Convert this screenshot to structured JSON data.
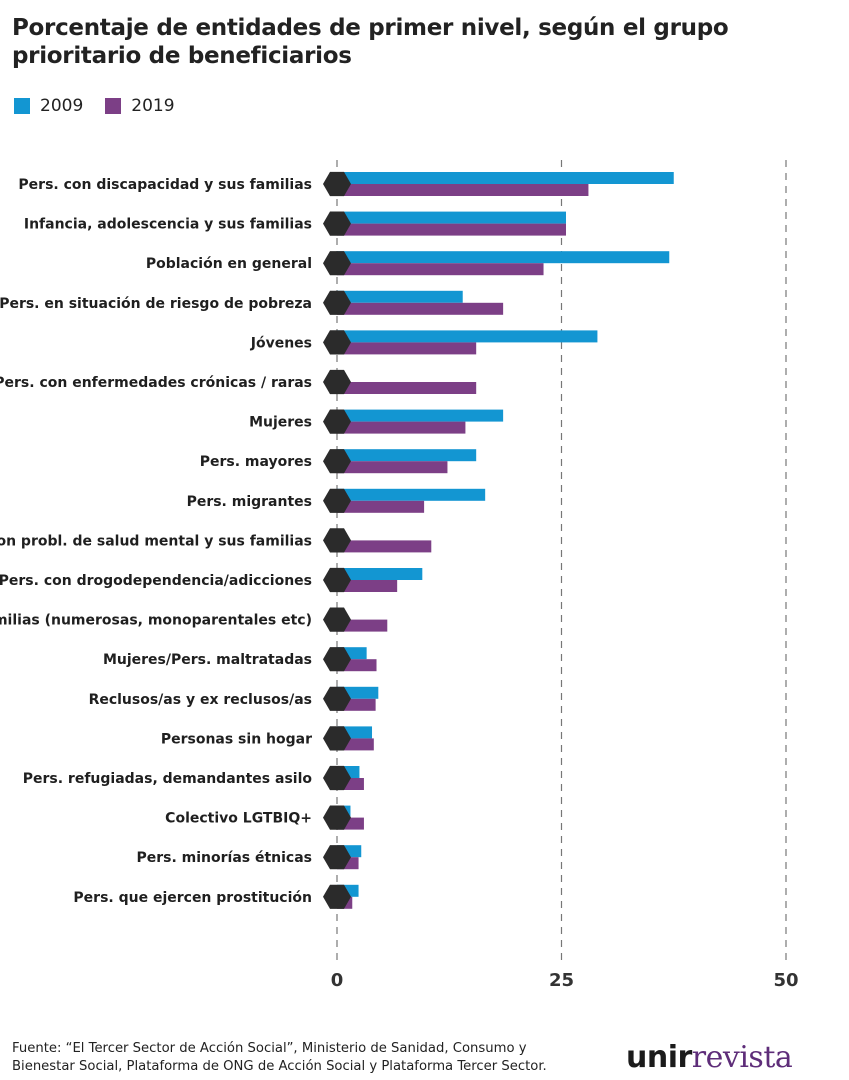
{
  "title": "Porcentaje de entidades de primer nivel, según el grupo prioritario de beneficiarios",
  "legend": [
    {
      "label": "2009",
      "color": "#1396d2"
    },
    {
      "label": "2019",
      "color": "#7c3f86"
    }
  ],
  "chart_data": {
    "type": "bar",
    "orientation": "horizontal",
    "categories": [
      "Pers. con discapacidad y sus familias",
      "Infancia, adolescencia y sus familias",
      "Población en general",
      "Pers. en situación de riesgo de pobreza",
      "Jóvenes",
      "Pers. con enfermedades crónicas / raras",
      "Mujeres",
      "Pers. mayores",
      "Pers. migrantes",
      "Con probl. de salud mental y sus familias",
      "Pers. con drogodependencia/adicciones",
      "Familias (numerosas, monoparentales etc)",
      "Mujeres/Pers. maltratadas",
      "Reclusos/as y ex reclusos/as",
      "Personas sin hogar",
      "Pers. refugiadas, demandantes asilo",
      "Colectivo LGTBIQ+",
      "Pers. minorías étnicas",
      "Pers. que ejercen prostitución"
    ],
    "series": [
      {
        "name": "2009",
        "color": "#1396d2",
        "values": [
          37.5,
          25.5,
          37,
          14,
          29,
          null,
          18.5,
          15.5,
          16.5,
          null,
          9.5,
          null,
          3.3,
          4.6,
          3.9,
          2.5,
          1.5,
          2.7,
          2.4
        ]
      },
      {
        "name": "2019",
        "color": "#7c3f86",
        "values": [
          28,
          25.5,
          23,
          18.5,
          15.5,
          15.5,
          14.3,
          12.3,
          9.7,
          10.5,
          6.7,
          5.6,
          4.4,
          4.3,
          4.1,
          3,
          3,
          2.4,
          1.7
        ]
      }
    ],
    "xticks": [
      "0",
      "25",
      "50"
    ],
    "xlim": [
      0,
      50
    ],
    "grid": true,
    "legend_position": "top-left"
  },
  "footer": {
    "line1": "Fuente: “El Tercer Sector de Acción Social”, Ministerio de Sanidad, Consumo y",
    "line2": "Bienestar Social, Plataforma de ONG de Acción Social y Plataforma Tercer Sector."
  },
  "brand": {
    "part1": "unir",
    "part2": "revista"
  },
  "colors": {
    "axis_marker": "#2b2b2b",
    "grid": "#777777"
  }
}
